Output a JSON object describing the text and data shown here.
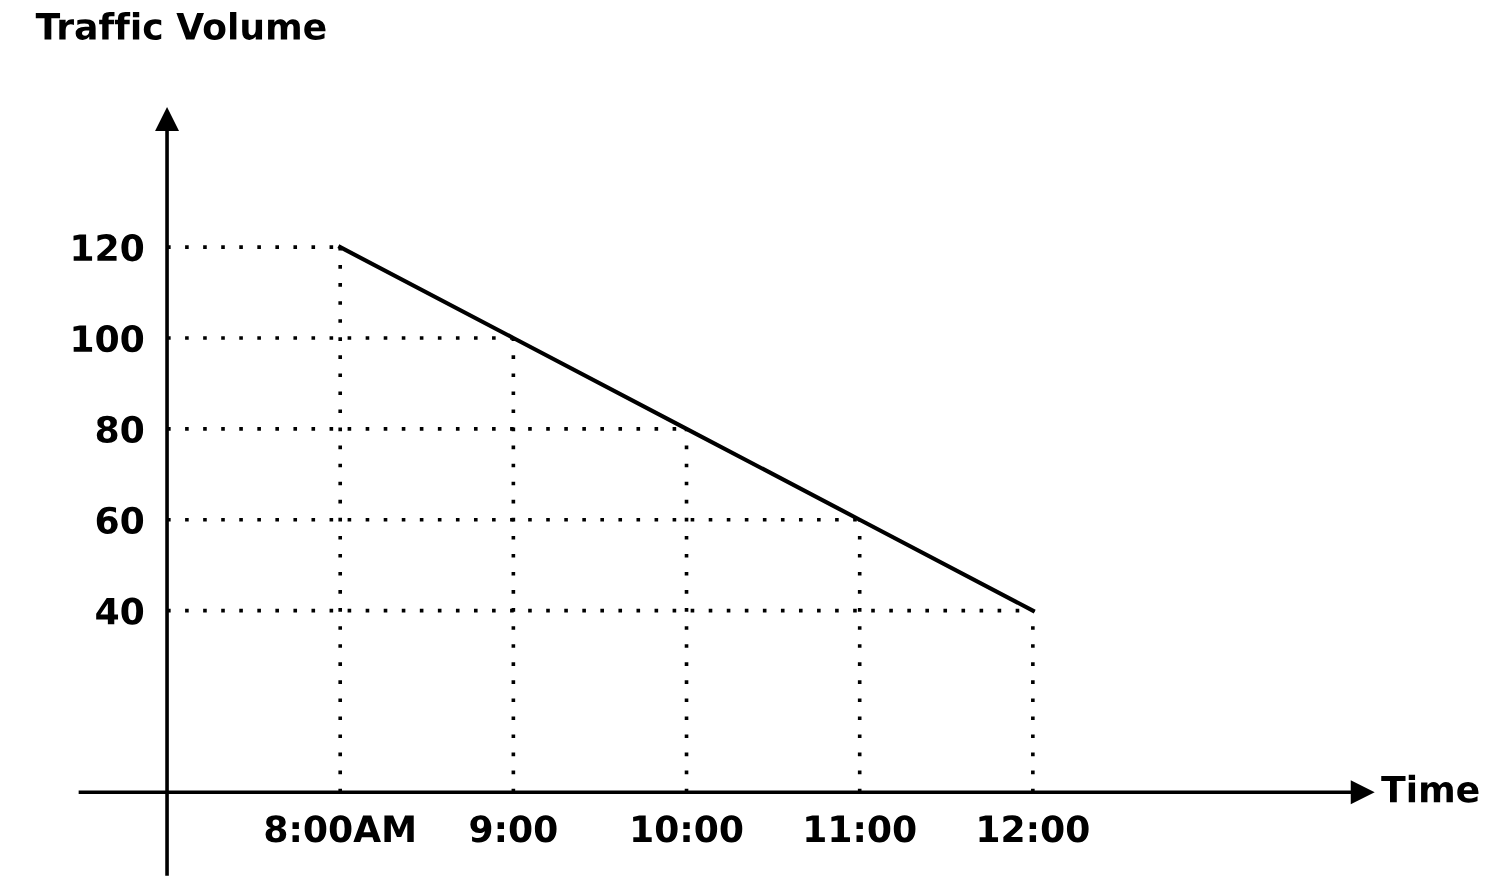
{
  "chart_data": {
    "type": "line",
    "xlabel": "Time",
    "ylabel": "Traffic Volume",
    "x": [
      8,
      9,
      10,
      11,
      12
    ],
    "series": [
      {
        "color": "#000000",
        "values": [
          120,
          100,
          80,
          60,
          40
        ]
      }
    ],
    "xlim": [
      6.5,
      13.9
    ],
    "ylim": [
      -18,
      148
    ],
    "xticks": [
      {
        "value": 8,
        "label": "8:00AM"
      },
      {
        "value": 9,
        "label": "9:00"
      },
      {
        "value": 10,
        "label": "10:00"
      },
      {
        "value": 11,
        "label": "11:00"
      },
      {
        "value": 12,
        "label": "12:00"
      }
    ],
    "yticks": [
      40,
      60,
      80,
      100,
      120
    ],
    "ref_lines": [
      {
        "axis": "y",
        "value": 120,
        "line_style": "dotted"
      },
      {
        "axis": "y",
        "value": 100,
        "line_style": "dotted"
      },
      {
        "axis": "y",
        "value": 80,
        "line_style": "dotted"
      },
      {
        "axis": "y",
        "value": 60,
        "line_style": "dotted"
      },
      {
        "axis": "y",
        "value": 40,
        "line_style": "dotted"
      },
      {
        "axis": "x",
        "value": 8,
        "line_style": "dotted"
      },
      {
        "axis": "x",
        "value": 9,
        "line_style": "dotted"
      },
      {
        "axis": "x",
        "value": 10,
        "line_style": "dotted"
      },
      {
        "axis": "x",
        "value": 11,
        "line_style": "dotted"
      },
      {
        "axis": "x",
        "value": 12,
        "line_style": "dotted"
      }
    ],
    "marker": "none",
    "line_style": "solid"
  }
}
